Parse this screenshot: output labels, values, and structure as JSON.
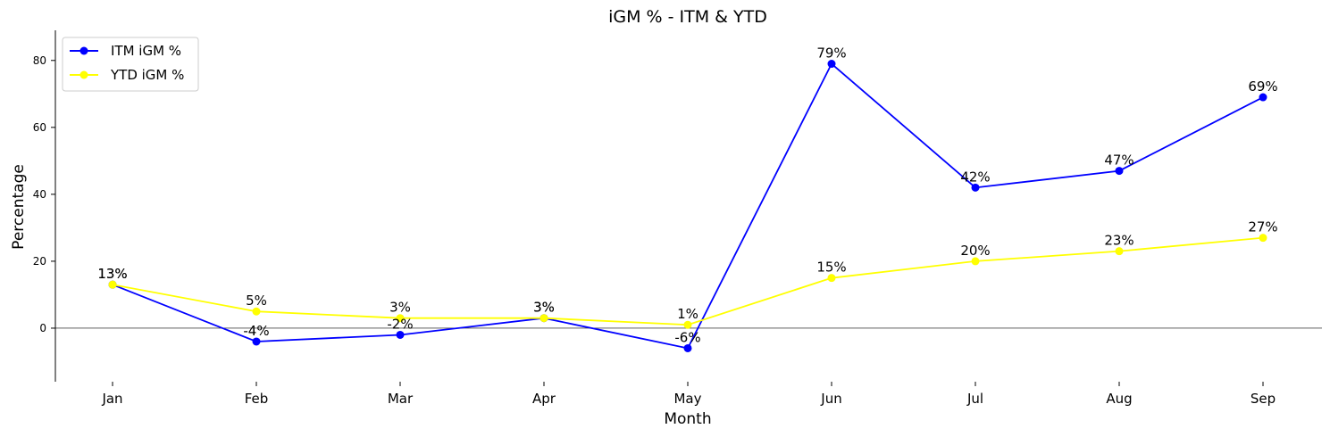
{
  "chart_data": {
    "type": "line",
    "title": "iGM % - ITM & YTD",
    "xlabel": "Month",
    "ylabel": "Percentage",
    "categories": [
      "Jan",
      "Feb",
      "Mar",
      "Apr",
      "May",
      "Jun",
      "Jul",
      "Aug",
      "Sep"
    ],
    "ylim": [
      -16,
      89
    ],
    "yticks": [
      0,
      20,
      40,
      60,
      80
    ],
    "legend_position": "top-left",
    "grid": false,
    "zero_line": true,
    "label_suffix": "%",
    "series": [
      {
        "name": "ITM iGM %",
        "color": "#0000ff",
        "values": [
          13,
          -4,
          -2,
          3,
          -6,
          79,
          42,
          47,
          69
        ]
      },
      {
        "name": "YTD iGM %",
        "color": "#ffff00",
        "values": [
          13,
          5,
          3,
          3,
          1,
          15,
          20,
          23,
          27
        ]
      }
    ]
  }
}
